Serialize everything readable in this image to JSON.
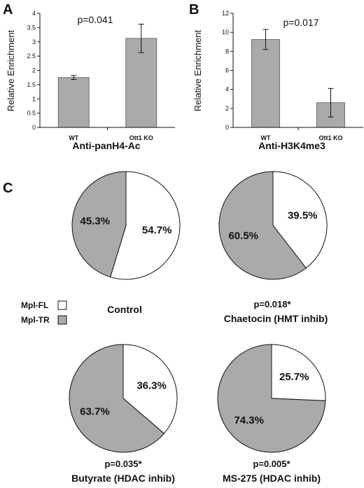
{
  "panels": {
    "a_letter": "A",
    "b_letter": "B",
    "c_letter": "C"
  },
  "chart_data": [
    {
      "type": "bar",
      "panel": "A",
      "categories": [
        "WT",
        "Ott1 KO"
      ],
      "values": [
        1.75,
        3.12
      ],
      "errors": [
        0.07,
        0.5
      ],
      "title": "",
      "xlabel": "Anti-panH4-Ac",
      "ylabel": "Relative Enrichment",
      "ylim": [
        0,
        4
      ],
      "yticks": [
        "0",
        "0.5",
        "1",
        "1.5",
        "2",
        "2.5",
        "3",
        "3.5",
        "4"
      ],
      "annotation": "p=0.041",
      "bar_color": "#aaaaaa"
    },
    {
      "type": "bar",
      "panel": "B",
      "categories": [
        "WT",
        "Ott1 KO"
      ],
      "values": [
        9.25,
        2.6
      ],
      "errors": [
        1.05,
        1.5
      ],
      "title": "",
      "xlabel": "Anti-H3K4me3",
      "ylabel": "Relative Enrichment",
      "ylim": [
        0,
        12
      ],
      "yticks": [
        "0",
        "2",
        "4",
        "6",
        "8",
        "10",
        "12"
      ],
      "annotation": "p=0.017",
      "bar_color": "#aaaaaa"
    },
    {
      "type": "pie",
      "panel": "C",
      "title": "Control",
      "pvalue": "",
      "slices": [
        {
          "label": "Mpl-FL",
          "value": 54.7,
          "text": "54.7%"
        },
        {
          "label": "Mpl-TR",
          "value": 45.3,
          "text": "45.3%"
        }
      ]
    },
    {
      "type": "pie",
      "panel": "C",
      "title": "Chaetocin (HMT inhib)",
      "pvalue": "p=0.018*",
      "slices": [
        {
          "label": "Mpl-FL",
          "value": 39.5,
          "text": "39.5%"
        },
        {
          "label": "Mpl-TR",
          "value": 60.5,
          "text": "60.5%"
        }
      ]
    },
    {
      "type": "pie",
      "panel": "C",
      "title": "Butyrate (HDAC inhib)",
      "pvalue": "p=0.035*",
      "slices": [
        {
          "label": "Mpl-FL",
          "value": 36.3,
          "text": "36.3%"
        },
        {
          "label": "Mpl-TR",
          "value": 63.7,
          "text": "63.7%"
        }
      ]
    },
    {
      "type": "pie",
      "panel": "C",
      "title": "MS-275 (HDAC inhib)",
      "pvalue": "p=0.005*",
      "slices": [
        {
          "label": "Mpl-FL",
          "value": 25.7,
          "text": "25.7%"
        },
        {
          "label": "Mpl-TR",
          "value": 74.3,
          "text": "74.3%"
        }
      ]
    }
  ],
  "legend": {
    "placement": "left",
    "items": [
      {
        "label": "Mpl-FL",
        "color": "#ffffff"
      },
      {
        "label": "Mpl-TR",
        "color": "#aaaaaa"
      }
    ]
  },
  "colors": {
    "fl": "#ffffff",
    "tr": "#aaaaaa",
    "bar": "#aaaaaa",
    "stroke": "#111111"
  }
}
